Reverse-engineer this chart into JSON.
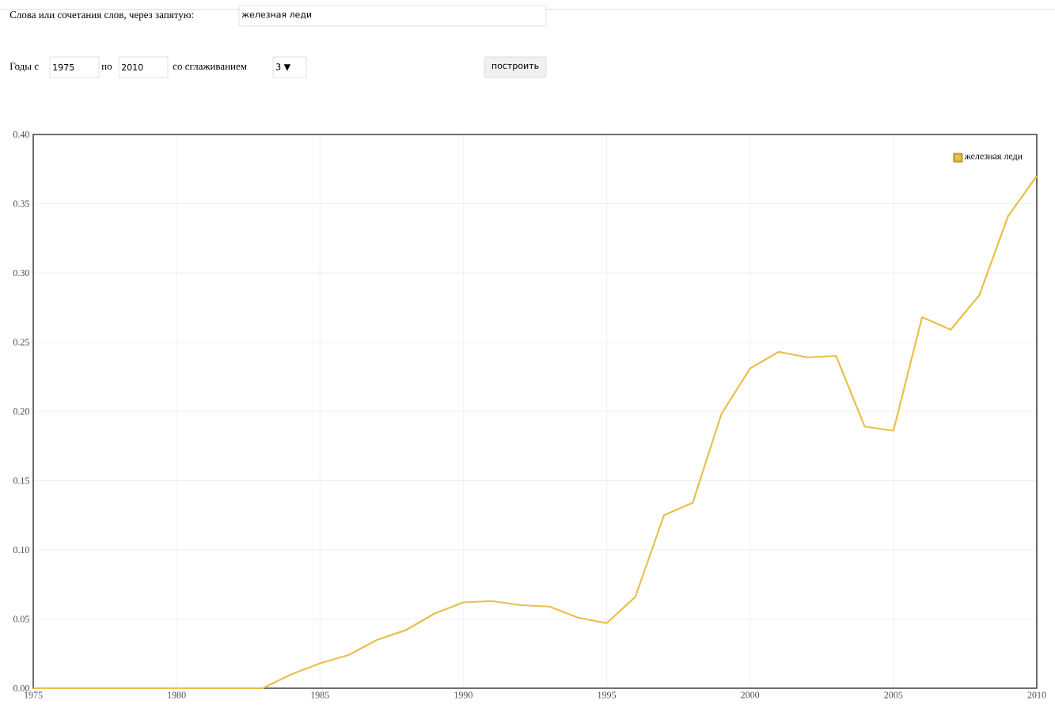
{
  "chart_data": {
    "type": "line",
    "x": [
      1975,
      1976,
      1977,
      1978,
      1979,
      1980,
      1981,
      1982,
      1983,
      1984,
      1985,
      1986,
      1987,
      1988,
      1989,
      1990,
      1991,
      1992,
      1993,
      1994,
      1995,
      1996,
      1997,
      1998,
      1999,
      2000,
      2001,
      2002,
      2003,
      2004,
      2005,
      2006,
      2007,
      2008,
      2009,
      2010
    ],
    "series": [
      {
        "name": "железная леди",
        "color": "#e8c04a",
        "values": [
          0,
          0,
          0,
          0,
          0,
          0,
          0,
          0,
          0,
          0.01,
          0.018,
          0.024,
          0.035,
          0.042,
          0.054,
          0.062,
          0.063,
          0.06,
          0.059,
          0.051,
          0.047,
          0.066,
          0.125,
          0.134,
          0.198,
          0.231,
          0.243,
          0.239,
          0.24,
          0.189,
          0.186,
          0.268,
          0.259,
          0.284,
          0.341,
          0.37
        ]
      }
    ],
    "xlim": [
      1975,
      2010
    ],
    "ylim": [
      0,
      0.4
    ],
    "xticks": [
      1975,
      1980,
      1985,
      1990,
      1995,
      2000,
      2005,
      2010
    ],
    "yticks": [
      {
        "value": 0,
        "label": "0.00"
      },
      {
        "value": 0.05,
        "label": "0.05"
      },
      {
        "value": 0.1,
        "label": "0.10"
      },
      {
        "value": 0.15,
        "label": "0.15"
      },
      {
        "value": 0.2,
        "label": "0.20"
      },
      {
        "value": 0.25,
        "label": "0.25"
      },
      {
        "value": 0.3,
        "label": "0.30"
      },
      {
        "value": 0.35,
        "label": "0.35"
      },
      {
        "value": 0.4,
        "label": "0.40"
      }
    ],
    "grid": true,
    "legend": "top right",
    "marker": "none",
    "line_style": "solid",
    "annotations": [
      "Слова или сочетания слов, через запятую:",
      "железная леди",
      "Годы с",
      "1975",
      "по",
      "2010",
      "со сглаживанием",
      "3 ▼",
      "построить"
    ]
  }
}
